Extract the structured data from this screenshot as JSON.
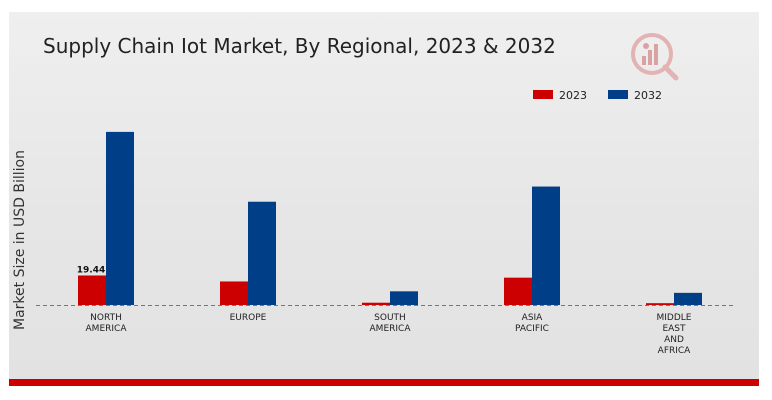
{
  "chart_data": {
    "type": "bar",
    "title": "Supply Chain Iot Market, By Regional, 2023 & 2032",
    "ylabel": "Market Size in USD Billion",
    "xlabel": "",
    "categories": [
      [
        "NORTH",
        "AMERICA"
      ],
      [
        "EUROPE"
      ],
      [
        "SOUTH",
        "AMERICA"
      ],
      [
        "ASIA",
        "PACIFIC"
      ],
      [
        "MIDDLE",
        "EAST",
        "AND",
        "AFRICA"
      ]
    ],
    "series": [
      {
        "name": "2023",
        "color": "#cc0000",
        "values": [
          19.44,
          15.5,
          1.5,
          18.0,
          1.2
        ]
      },
      {
        "name": "2032",
        "color": "#003f87",
        "values": [
          114.0,
          68.0,
          9.0,
          78.0,
          8.0
        ]
      }
    ],
    "data_labels": [
      {
        "series": 0,
        "index": 0,
        "text": "19.44"
      }
    ],
    "ylim": [
      0,
      135
    ],
    "grid": false,
    "legend": "top-right",
    "baseline_style": "dashed"
  },
  "logo": {
    "icon": "market-research-logo-icon",
    "color": "#d9534f"
  }
}
